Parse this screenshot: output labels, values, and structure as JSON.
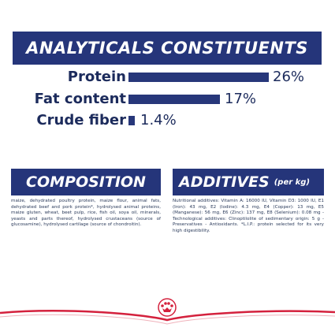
{
  "analytical": {
    "title": "ANALYTICALS CONSTITUENTS",
    "items": [
      {
        "label": "Protein",
        "value": "26%",
        "level": 26
      },
      {
        "label": "Fat content",
        "value": "17%",
        "level": 17
      },
      {
        "label": "Crude fiber",
        "value": "1.4%",
        "level": 1.4
      }
    ]
  },
  "composition": {
    "title": "COMPOSITION",
    "text": "maize, dehydrated poultry protein, maize flour, animal fats, dehydrated beef and pork protein*, hydrolysed animal proteins, maize gluten, wheat, beet pulp, rice, fish oil, soya oil, minerals, yeasts and parts thereof, hydrolysed crustaceans (source of glucosamine), hydrolysed cartilage (source of chondroitin)."
  },
  "additives": {
    "title": "ADDITIVES",
    "title_suffix": "(per kg)",
    "text": "Nutritional additives: Vitamin A: 16000 IU, Vitamin D3: 1000 IU, E1 (Iron): 43 mg, E2 (Iodine): 4.3 mg, E4 (Copper): 13 mg, E5 (Manganese): 56 mg, E6 (Zinc): 137 mg, E8 (Selenium): 0.08 mg - Technological additives: Clinoptilolite of sedimentary origin: 5 g - Preservatives - Antioxidants. *L.I.P.: protein selected for its very high digestibility."
  },
  "brand": {
    "logo": "royal-canin-crown-logo",
    "colors": {
      "navy": "#25357a",
      "red": "#d4213d"
    }
  }
}
